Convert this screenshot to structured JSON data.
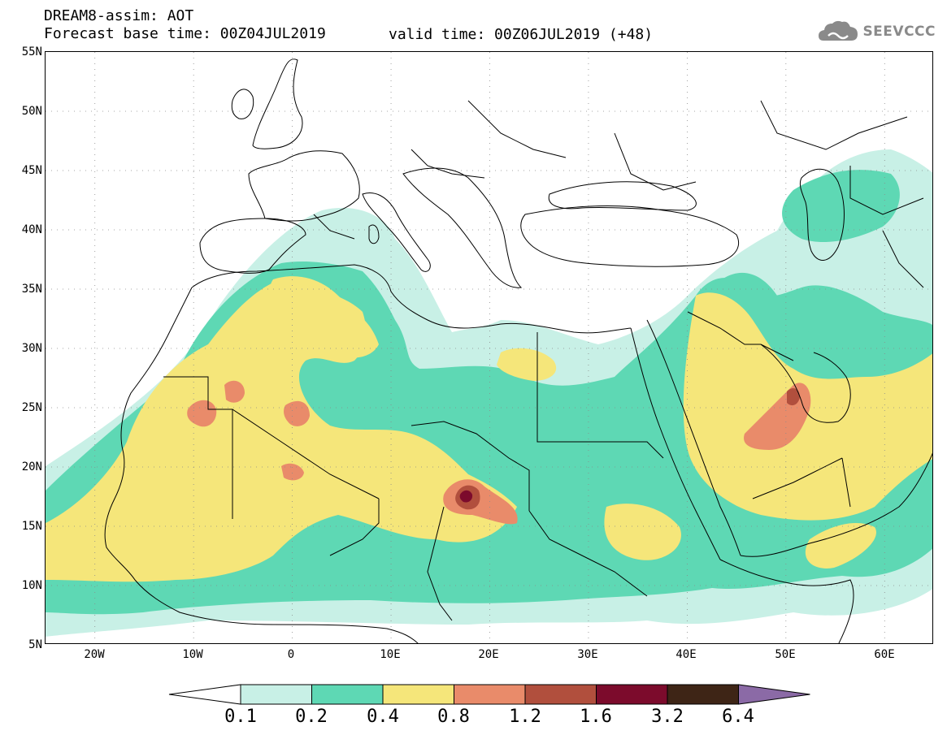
{
  "header": {
    "title": "DREAM8-assim: AOT",
    "base_time": "Forecast base time: 00Z04JUL2019",
    "valid_time": "valid time: 00Z06JUL2019 (+48)",
    "logo_text": "SEEVCCC"
  },
  "map": {
    "projection": "latlon",
    "lon_range": [
      -25,
      65
    ],
    "lat_range": [
      5,
      55
    ],
    "lat_labels": [
      "55N",
      "50N",
      "45N",
      "40N",
      "35N",
      "30N",
      "25N",
      "20N",
      "15N",
      "10N",
      "5N"
    ],
    "lon_labels": [
      "20W",
      "10W",
      "0",
      "10E",
      "20E",
      "30E",
      "40E",
      "50E",
      "60E"
    ],
    "gridlines": true
  },
  "legend": {
    "levels": [
      "0.1",
      "0.2",
      "0.4",
      "0.8",
      "1.2",
      "1.6",
      "3.2",
      "6.4"
    ],
    "colors": [
      "#c8f0e6",
      "#5ed8b4",
      "#f5e67a",
      "#e98b6a",
      "#b14f3d",
      "#7c0b2c",
      "#3e2516",
      "#8b6aa6"
    ],
    "under_color": "#ffffff"
  }
}
